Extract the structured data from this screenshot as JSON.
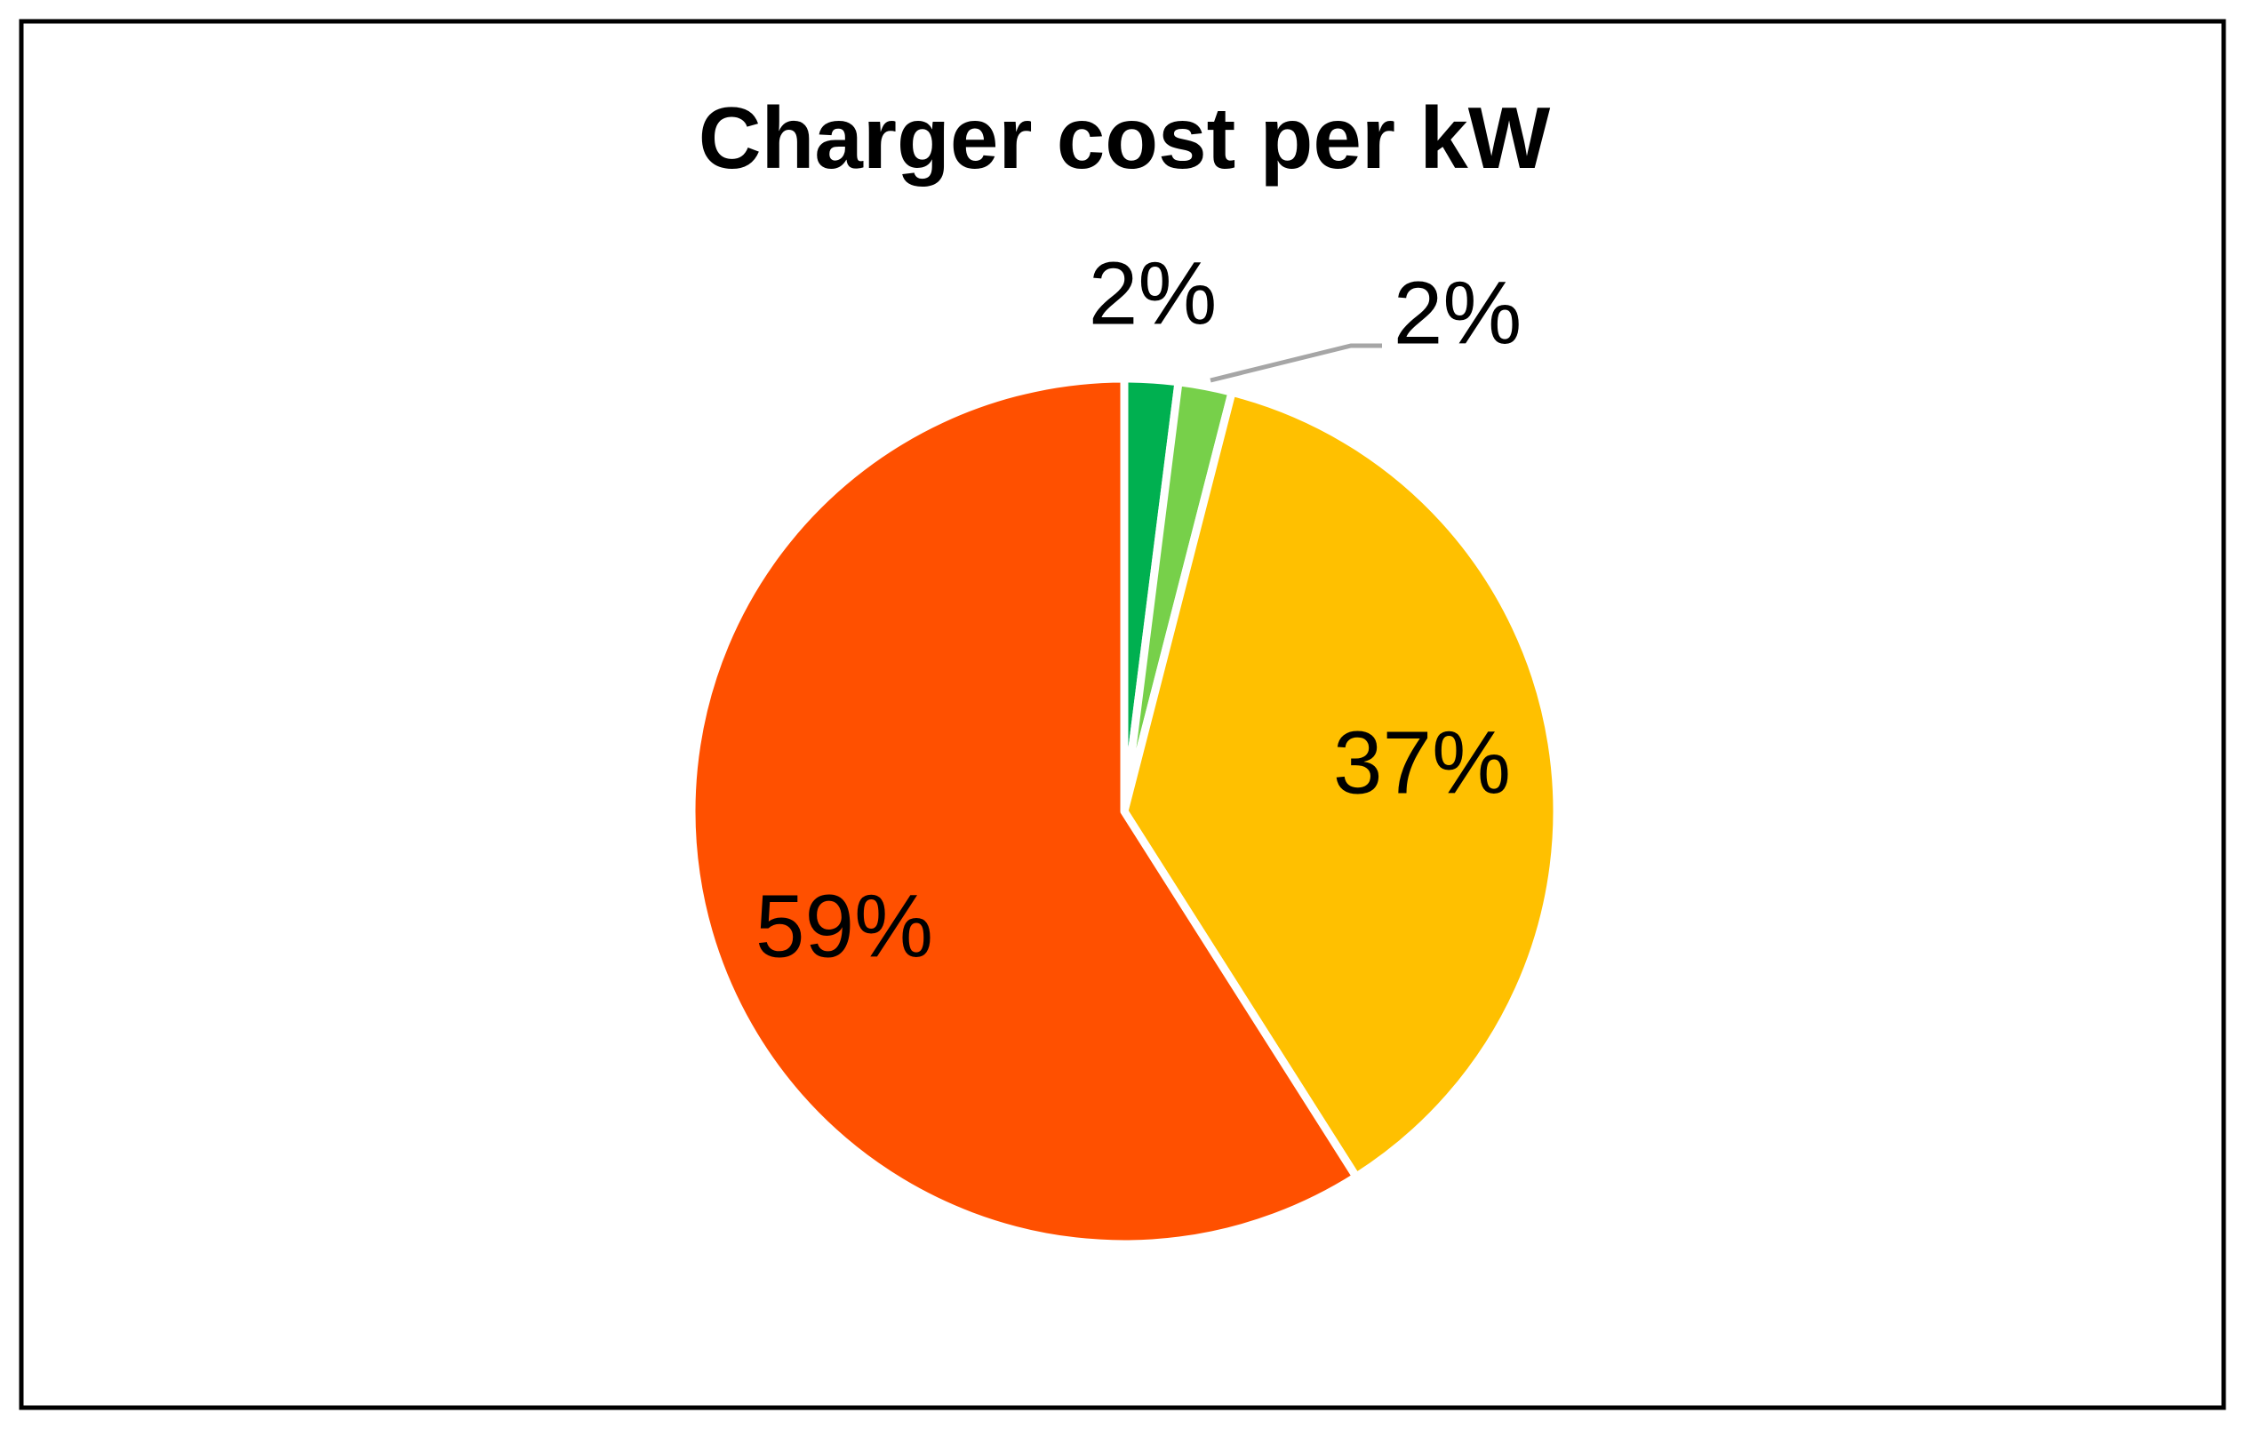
{
  "chart_data": {
    "type": "pie",
    "title": "Charger cost per kW",
    "values": [
      2,
      2,
      37,
      59
    ],
    "value_labels": [
      "2%",
      "2%",
      "37%",
      "59%"
    ],
    "colors": [
      "#00b050",
      "#77d04a",
      "#ffc000",
      "#ff5000"
    ]
  }
}
